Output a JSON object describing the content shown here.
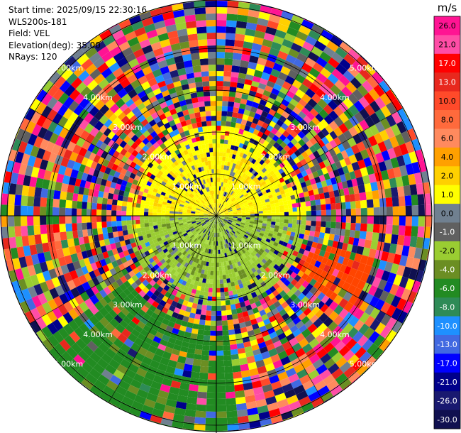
{
  "header": {
    "start_time": "Start time: 2025/09/15 22:30:16",
    "instrument": "WLS200s-181",
    "field": "Field: VEL",
    "elevation": "Elevation(deg): 35.00",
    "nrays": "NRays: 120"
  },
  "chart_data": {
    "type": "ppi",
    "field": "VEL",
    "units": "m/s",
    "nrays": 120,
    "elevation_deg": 35.0,
    "range_rings_km": [
      "1.00km",
      "2.00km",
      "3.00km",
      "4.00km",
      "5.00km"
    ],
    "max_range_km": 5.2,
    "colorbar": {
      "unit_label": "m/s",
      "tick_labels": [
        "26.0",
        "21.0",
        "17.0",
        "13.0",
        "10.0",
        "8.0",
        "6.0",
        "4.0",
        "2.0",
        "1.0",
        "0.0",
        "-1.0",
        "-2.0",
        "-4.0",
        "-6.0",
        "-8.0",
        "-10.0",
        "-13.0",
        "-17.0",
        "-21.0",
        "-26.0",
        "-30.0"
      ],
      "colors": [
        "#ff1493",
        "#ff4da6",
        "#ff0000",
        "#e8281e",
        "#ff4a2a",
        "#ff6a3c",
        "#ff8a5e",
        "#ffa000",
        "#ffd000",
        "#ffff00",
        "#708090",
        "#606060",
        "#9acd32",
        "#6b8e23",
        "#228b22",
        "#2e8b57",
        "#1e90ff",
        "#4169e1",
        "#0000ff",
        "#00008b",
        "#191970",
        "#101050"
      ]
    },
    "sectors": {
      "near_field_positive": "yellow",
      "near_field_negative": "olive-green",
      "far_field": "noise"
    }
  }
}
